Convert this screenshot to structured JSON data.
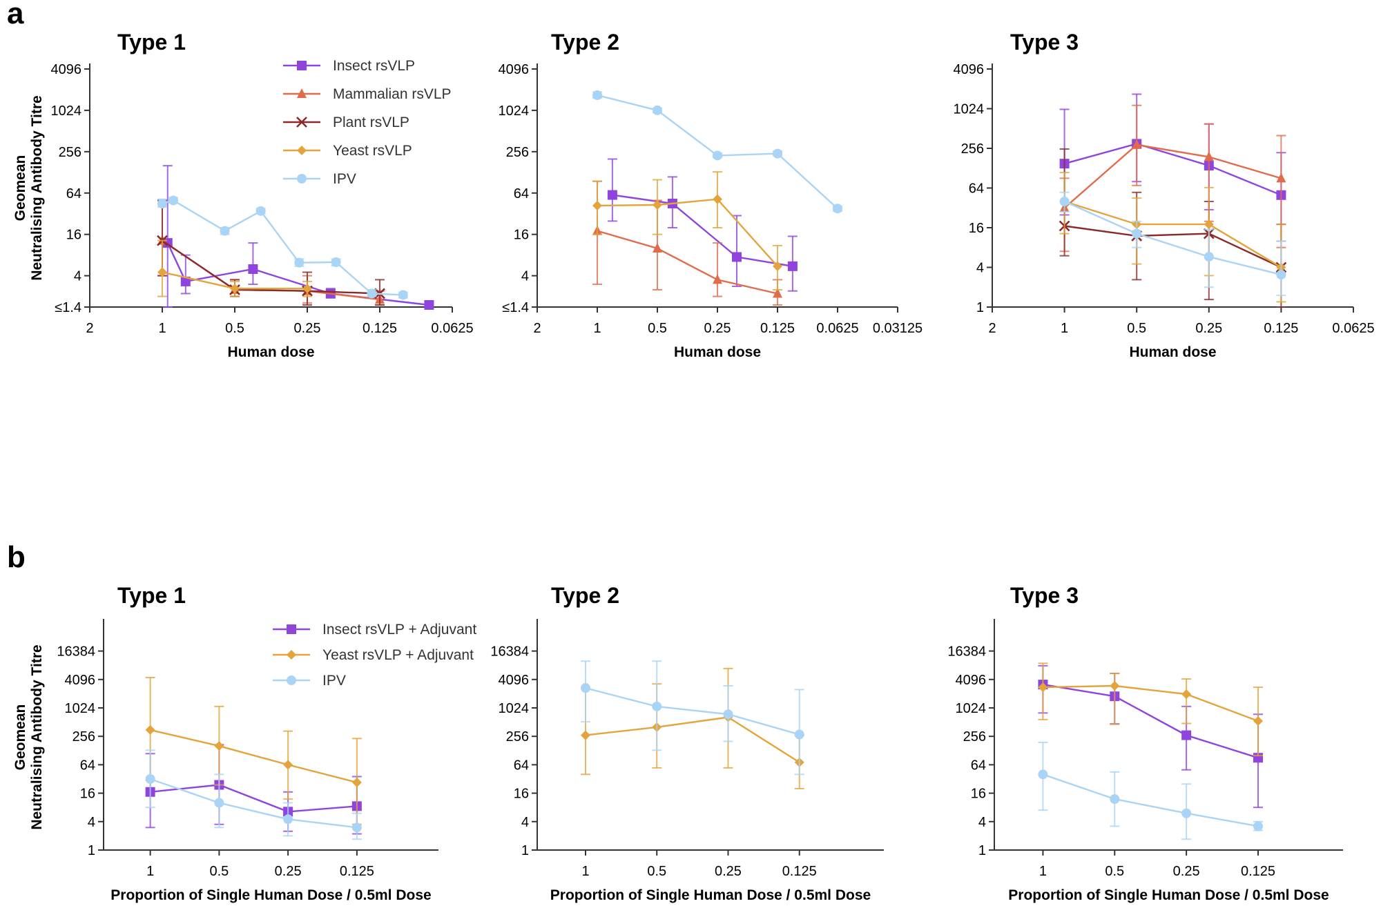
{
  "panel_labels": [
    "a",
    "b"
  ],
  "colors": {
    "insect": "#8e44dd",
    "mammalian": "#e06c4c",
    "plant": "#8b2a2a",
    "yeast": "#e3a43c",
    "ipv": "#a9d4f5"
  },
  "chart_data": [
    {
      "type": "line",
      "panel": "a",
      "title": "Type 1",
      "xlabel": "Human dose",
      "ylabel": "Geomean Neutralising Antibody Titre",
      "xticks": [
        "2",
        "1",
        "0.5",
        "0.25",
        "0.125",
        "0.0625"
      ],
      "xlim": [
        2,
        0.0625
      ],
      "yticks": [
        "≤1.4",
        "4",
        "16",
        "64",
        "256",
        "1024",
        "4096"
      ],
      "ylim": [
        1.4,
        4096
      ],
      "legend": [
        "Insect rsVLP",
        "Mammalian rsVLP",
        "Plant rsVLP",
        "Yeast rsVLP",
        "IPV"
      ],
      "series": [
        {
          "name": "Insect rsVLP",
          "color_key": "insect",
          "marker": "square",
          "x": [
            0.95,
            0.8,
            0.42,
            0.2,
            0.078
          ],
          "y": [
            12,
            3.3,
            5,
            2.2,
            1.5
          ],
          "err_hi": [
            160,
            8,
            12,
            2.6,
            1.7
          ],
          "err_lo": [
            1.4,
            2.2,
            3,
            1.9,
            1.4
          ]
        },
        {
          "name": "Mammalian rsVLP",
          "color_key": "mammalian",
          "marker": "triangle",
          "x": [
            1,
            0.5,
            0.25,
            0.125
          ],
          "y": [
            13,
            2.5,
            2.4,
            1.8
          ],
          "err_hi": [
            50,
            3.5,
            4,
            2.4
          ],
          "err_lo": [
            4,
            2,
            1.6,
            1.5
          ]
        },
        {
          "name": "Plant rsVLP",
          "color_key": "plant",
          "marker": "cross",
          "x": [
            1,
            0.5,
            0.25,
            0.125
          ],
          "y": [
            13,
            2.5,
            2.4,
            2.2
          ],
          "err_hi": [
            50,
            3.5,
            4.5,
            3.5
          ],
          "err_lo": [
            4,
            2,
            1.5,
            1.5
          ]
        },
        {
          "name": "Yeast rsVLP",
          "color_key": "yeast",
          "marker": "diamond",
          "x": [
            1,
            0.5,
            0.25
          ],
          "y": [
            4.5,
            2.6,
            2.6
          ],
          "err_hi": [
            13,
            3.3,
            3.3
          ],
          "err_lo": [
            2,
            2,
            2
          ]
        },
        {
          "name": "IPV",
          "color_key": "ipv",
          "marker": "circle",
          "x": [
            1,
            0.9,
            0.55,
            0.39,
            0.27,
            0.19,
            0.135,
            0.1
          ],
          "y": [
            45,
            50,
            18,
            35,
            6.2,
            6.3,
            2.2,
            2.1
          ],
          "err_hi": [
            52,
            55,
            20,
            38,
            7,
            7,
            2.5,
            2.3
          ],
          "err_lo": [
            40,
            46,
            16,
            32,
            5.5,
            5.6,
            2,
            1.9
          ]
        }
      ]
    },
    {
      "type": "line",
      "panel": "a",
      "title": "Type 2",
      "xlabel": "Human dose",
      "ylabel": "",
      "xticks": [
        "2",
        "1",
        "0.5",
        "0.25",
        "0.125",
        "0.0625",
        "0.03125"
      ],
      "xlim": [
        2,
        0.03125
      ],
      "yticks": [
        "≤1.4",
        "4",
        "16",
        "64",
        "256",
        "1024",
        "4096"
      ],
      "ylim": [
        1.4,
        4096
      ],
      "legend": [],
      "series": [
        {
          "name": "Insect rsVLP",
          "color_key": "insect",
          "marker": "square",
          "x": [
            0.84,
            0.42,
            0.2,
            0.105
          ],
          "y": [
            60,
            45,
            7.5,
            5.5
          ],
          "err_hi": [
            200,
            110,
            30,
            15
          ],
          "err_lo": [
            25,
            20,
            2.8,
            2.4
          ]
        },
        {
          "name": "Mammalian rsVLP",
          "color_key": "mammalian",
          "marker": "triangle",
          "x": [
            1,
            0.5,
            0.25,
            0.125
          ],
          "y": [
            18,
            10,
            3.5,
            2.2
          ],
          "err_hi": [
            95,
            50,
            12,
            3.5
          ],
          "err_lo": [
            3,
            2.5,
            2,
            1.5
          ]
        },
        {
          "name": "Yeast rsVLP",
          "color_key": "yeast",
          "marker": "diamond",
          "x": [
            1,
            0.5,
            0.25,
            0.125
          ],
          "y": [
            42,
            43,
            52,
            5.5
          ],
          "err_hi": [
            95,
            100,
            130,
            11
          ],
          "err_lo": [
            16,
            16,
            20,
            2.5
          ]
        },
        {
          "name": "IPV",
          "color_key": "ipv",
          "marker": "circle",
          "x": [
            1,
            0.5,
            0.25,
            0.125,
            0.0625
          ],
          "y": [
            1700,
            1024,
            225,
            240,
            38
          ],
          "err_hi": [
            1900,
            1100,
            245,
            260,
            41
          ],
          "err_lo": [
            1550,
            950,
            210,
            225,
            35
          ]
        }
      ]
    },
    {
      "type": "line",
      "panel": "a",
      "title": "Type 3",
      "xlabel": "Human dose",
      "ylabel": "",
      "xticks": [
        "2",
        "1",
        "0.5",
        "0.25",
        "0.125",
        "0.0625"
      ],
      "xlim": [
        2,
        0.0625
      ],
      "yticks": [
        "1",
        "4",
        "16",
        "64",
        "256",
        "1024",
        "4096"
      ],
      "ylim": [
        1,
        4096
      ],
      "legend": [],
      "series": [
        {
          "name": "Insect rsVLP",
          "color_key": "insect",
          "marker": "square",
          "x": [
            1,
            0.5,
            0.25,
            0.125
          ],
          "y": [
            150,
            300,
            140,
            50
          ],
          "err_hi": [
            1000,
            1700,
            600,
            220
          ],
          "err_lo": [
            25,
            80,
            30,
            10
          ]
        },
        {
          "name": "Mammalian rsVLP",
          "color_key": "mammalian",
          "marker": "triangle",
          "x": [
            1,
            0.5,
            0.25,
            0.125
          ],
          "y": [
            32,
            290,
            190,
            90
          ],
          "err_hi": [
            90,
            1150,
            600,
            400
          ],
          "err_lo": [
            7,
            70,
            20,
            8
          ]
        },
        {
          "name": "Plant rsVLP",
          "color_key": "plant",
          "marker": "cross",
          "x": [
            1,
            0.5,
            0.25,
            0.125
          ],
          "y": [
            17,
            12,
            13,
            4
          ],
          "err_hi": [
            250,
            55,
            40,
            18
          ],
          "err_lo": [
            6,
            2.6,
            1.3,
            1
          ]
        },
        {
          "name": "Yeast rsVLP",
          "color_key": "yeast",
          "marker": "diamond",
          "x": [
            1,
            0.5,
            0.25,
            0.125
          ],
          "y": [
            40,
            18,
            18,
            4
          ],
          "err_hi": [
            110,
            45,
            65,
            18
          ],
          "err_lo": [
            13,
            4.5,
            3,
            1.2
          ]
        },
        {
          "name": "IPV",
          "color_key": "ipv",
          "marker": "circle",
          "x": [
            1,
            0.5,
            0.25,
            0.125
          ],
          "y": [
            40,
            13,
            5.8,
            3.1
          ],
          "err_hi": [
            55,
            20,
            15,
            10
          ],
          "err_lo": [
            28,
            8,
            2,
            1.5
          ]
        }
      ]
    },
    {
      "type": "line",
      "panel": "b",
      "title": "Type 1",
      "xlabel": "Proportion of Single Human Dose / 0.5ml Dose",
      "ylabel": "Geomean Neutralising Antibody Titre",
      "xticks": [
        "1",
        "0.5",
        "0.25",
        "0.125"
      ],
      "xlim": [
        1.6,
        0.055
      ],
      "yticks": [
        "1",
        "4",
        "16",
        "64",
        "256",
        "1024",
        "4096",
        "16384"
      ],
      "ylim": [
        1,
        60000
      ],
      "legend": [
        "Insect rsVLP + Adjuvant",
        "Yeast rsVLP + Adjuvant",
        "IPV"
      ],
      "series": [
        {
          "name": "Insect rsVLP + Adjuvant",
          "color_key": "insect",
          "marker": "square",
          "x": [
            1,
            0.5,
            0.25,
            0.125
          ],
          "y": [
            17,
            24,
            6.5,
            8.5
          ],
          "err_hi": [
            110,
            170,
            17,
            36
          ],
          "err_lo": [
            3,
            3.5,
            2.5,
            2.2
          ]
        },
        {
          "name": "Yeast rsVLP + Adjuvant",
          "color_key": "yeast",
          "marker": "diamond",
          "x": [
            1,
            0.5,
            0.25,
            0.125
          ],
          "y": [
            350,
            160,
            64,
            27
          ],
          "err_hi": [
            4500,
            1100,
            330,
            230
          ],
          "err_lo": [
            30,
            24,
            12,
            3.5
          ]
        },
        {
          "name": "IPV",
          "color_key": "ipv",
          "marker": "circle",
          "x": [
            1,
            0.5,
            0.25,
            0.125
          ],
          "y": [
            32,
            10,
            4.5,
            3
          ],
          "err_hi": [
            130,
            40,
            10,
            6
          ],
          "err_lo": [
            8,
            3,
            2,
            1.7
          ]
        }
      ]
    },
    {
      "type": "line",
      "panel": "b",
      "title": "Type 2",
      "xlabel": "Proportion of Single Human Dose / 0.5ml Dose",
      "ylabel": "",
      "xticks": [
        "1",
        "0.5",
        "0.25",
        "0.125"
      ],
      "xlim": [
        1.6,
        0.055
      ],
      "yticks": [
        "1",
        "4",
        "16",
        "64",
        "256",
        "1024",
        "4096",
        "16384"
      ],
      "ylim": [
        1,
        60000
      ],
      "legend": [],
      "series": [
        {
          "name": "Yeast rsVLP + Adjuvant",
          "color_key": "yeast",
          "marker": "diamond",
          "x": [
            1,
            0.5,
            0.25,
            0.125
          ],
          "y": [
            270,
            400,
            650,
            72
          ],
          "err_hi": [
            2700,
            3300,
            7000,
            270
          ],
          "err_lo": [
            40,
            55,
            55,
            20
          ]
        },
        {
          "name": "IPV",
          "color_key": "ipv",
          "marker": "circle",
          "x": [
            1,
            0.5,
            0.25,
            0.125
          ],
          "y": [
            2700,
            1100,
            750,
            280
          ],
          "err_hi": [
            10000,
            10000,
            3000,
            2500
          ],
          "err_lo": [
            520,
            130,
            200,
            40
          ]
        }
      ]
    },
    {
      "type": "line",
      "panel": "b",
      "title": "Type 3",
      "xlabel": "Proportion of Single Human Dose / 0.5ml Dose",
      "ylabel": "",
      "xticks": [
        "1",
        "0.5",
        "0.25",
        "0.125"
      ],
      "xlim": [
        1.6,
        0.055
      ],
      "yticks": [
        "1",
        "4",
        "16",
        "64",
        "256",
        "1024",
        "4096",
        "16384"
      ],
      "ylim": [
        1,
        60000
      ],
      "legend": [],
      "series": [
        {
          "name": "Insect rsVLP + Adjuvant",
          "color_key": "insect",
          "marker": "square",
          "x": [
            1,
            0.5,
            0.25,
            0.125
          ],
          "y": [
            3200,
            1800,
            270,
            90
          ],
          "err_hi": [
            8000,
            5500,
            1100,
            750
          ],
          "err_lo": [
            800,
            470,
            50,
            8
          ]
        },
        {
          "name": "Yeast rsVLP + Adjuvant",
          "color_key": "yeast",
          "marker": "diamond",
          "x": [
            1,
            0.5,
            0.25,
            0.125
          ],
          "y": [
            2800,
            3000,
            2000,
            540
          ],
          "err_hi": [
            9000,
            5500,
            4200,
            2800
          ],
          "err_lo": [
            580,
            460,
            480,
            100
          ]
        },
        {
          "name": "IPV",
          "color_key": "ipv",
          "marker": "circle",
          "x": [
            1,
            0.5,
            0.25,
            0.125
          ],
          "y": [
            40,
            12,
            6,
            3.2
          ],
          "err_hi": [
            190,
            45,
            25,
            4
          ],
          "err_lo": [
            7,
            3.2,
            1.7,
            2.6
          ]
        }
      ]
    }
  ]
}
